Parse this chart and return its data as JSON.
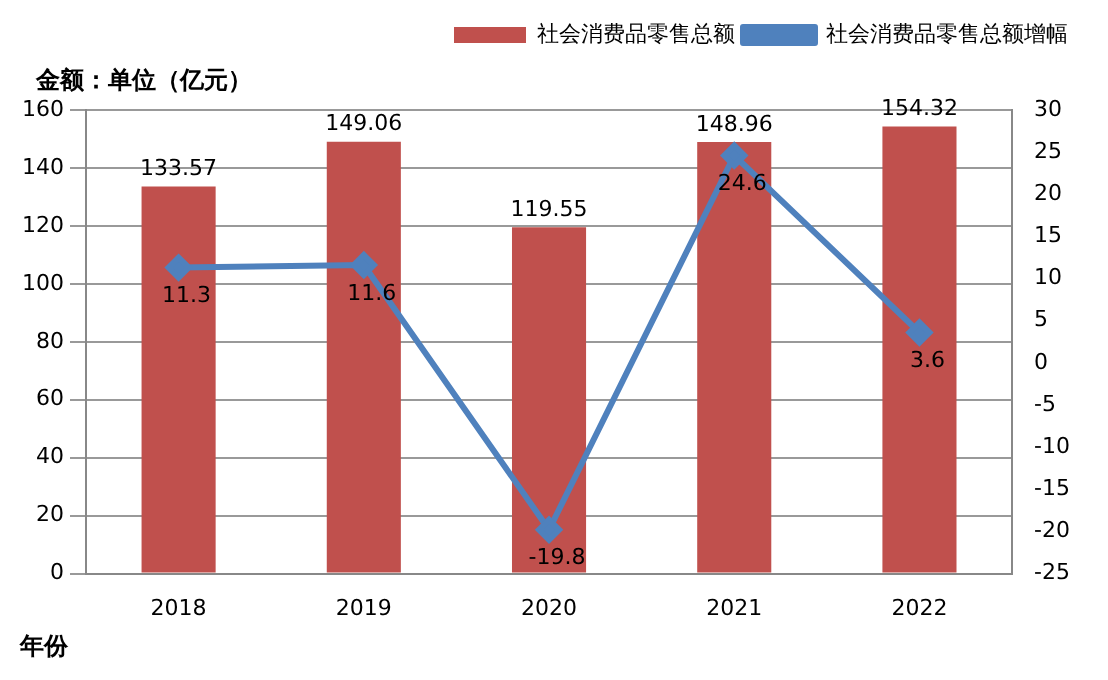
{
  "chart_data": {
    "type": "bar",
    "ylabel": "金额：单位（亿元）",
    "xlabel": "年份",
    "categories": [
      "2018",
      "2019",
      "2020",
      "2021",
      "2022"
    ],
    "series": [
      {
        "name": "社会消费品零售总额",
        "color": "#c0504d",
        "values": [
          133.57,
          149.06,
          119.55,
          148.96,
          154.32
        ]
      },
      {
        "name": "社会消费品零售总额增幅",
        "type": "line",
        "axis": "y2",
        "color": "#4f81bd",
        "values": [
          11.3,
          11.6,
          -19.8,
          24.6,
          3.6
        ]
      }
    ],
    "ylim": [
      0,
      160
    ],
    "yticks": [
      0,
      20,
      40,
      60,
      80,
      100,
      120,
      140,
      160
    ],
    "y2lim": [
      -25,
      30
    ],
    "y2ticks": [
      -25,
      -20,
      -15,
      -10,
      -5,
      0,
      5,
      10,
      15,
      20,
      25,
      30
    ],
    "grid": "y",
    "legend": "top right",
    "marker": "diamond",
    "line_style": "solid",
    "data_labels": true
  }
}
